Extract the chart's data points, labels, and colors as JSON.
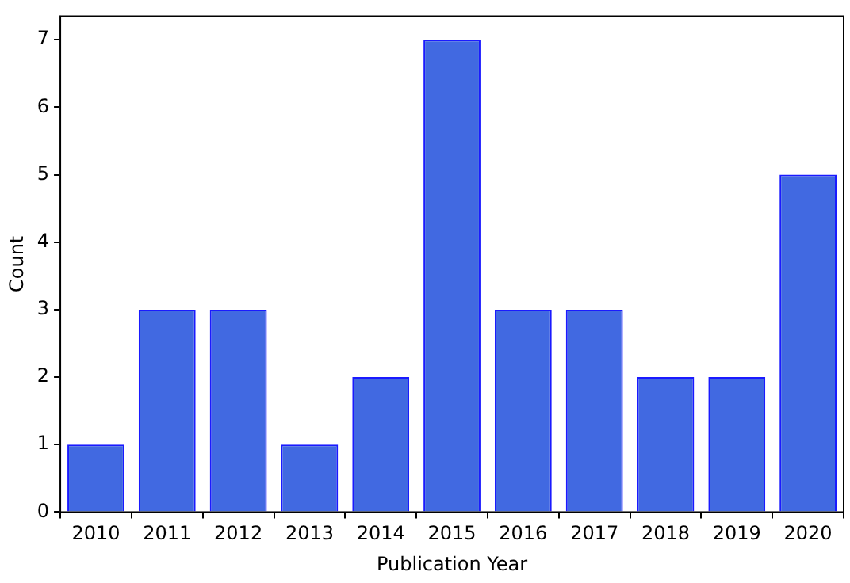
{
  "chart_data": {
    "type": "bar",
    "xlabel": "Publication Year",
    "ylabel": "Count",
    "categories": [
      "2010",
      "2011",
      "2012",
      "2013",
      "2014",
      "2015",
      "2016",
      "2017",
      "2018",
      "2019",
      "2020"
    ],
    "values": [
      1,
      3,
      3,
      1,
      2,
      7,
      3,
      3,
      2,
      2,
      5
    ],
    "color": "#4169e1",
    "ylim": [
      0,
      7.35
    ],
    "yticks": [
      0,
      1,
      2,
      3,
      4,
      5,
      6,
      7
    ],
    "grid": false,
    "legend": false
  }
}
